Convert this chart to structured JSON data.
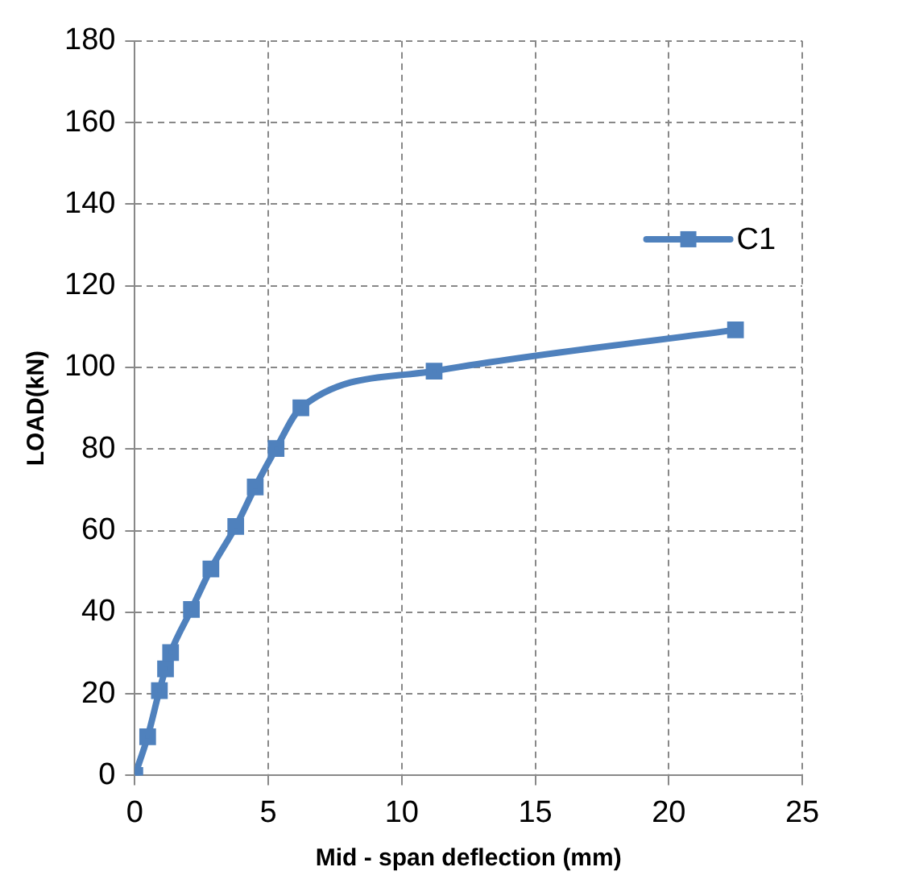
{
  "chart_data": {
    "type": "line",
    "xlabel": "Mid - span deflection (mm)",
    "ylabel": "LOAD(kN)",
    "xlim": [
      0,
      25
    ],
    "xticks": [
      0,
      5,
      10,
      15,
      20,
      25
    ],
    "ylim": [
      0,
      180
    ],
    "yticks": [
      0,
      20,
      40,
      60,
      80,
      100,
      120,
      140,
      160,
      180
    ],
    "grid": true,
    "legend": "right",
    "marker": "square",
    "line_style": "solid",
    "series": [
      {
        "name": "C1",
        "color": "#4f81bd",
        "x": [
          0,
          0.48,
          0.92,
          1.15,
          1.34,
          2.12,
          2.85,
          3.78,
          4.51,
          5.29,
          6.22,
          11.21,
          22.5
        ],
        "values": [
          0,
          9.5,
          20.8,
          26.1,
          30.1,
          40.7,
          50.6,
          61,
          70.7,
          80.1,
          90.1,
          99.1,
          109.2
        ]
      }
    ]
  }
}
